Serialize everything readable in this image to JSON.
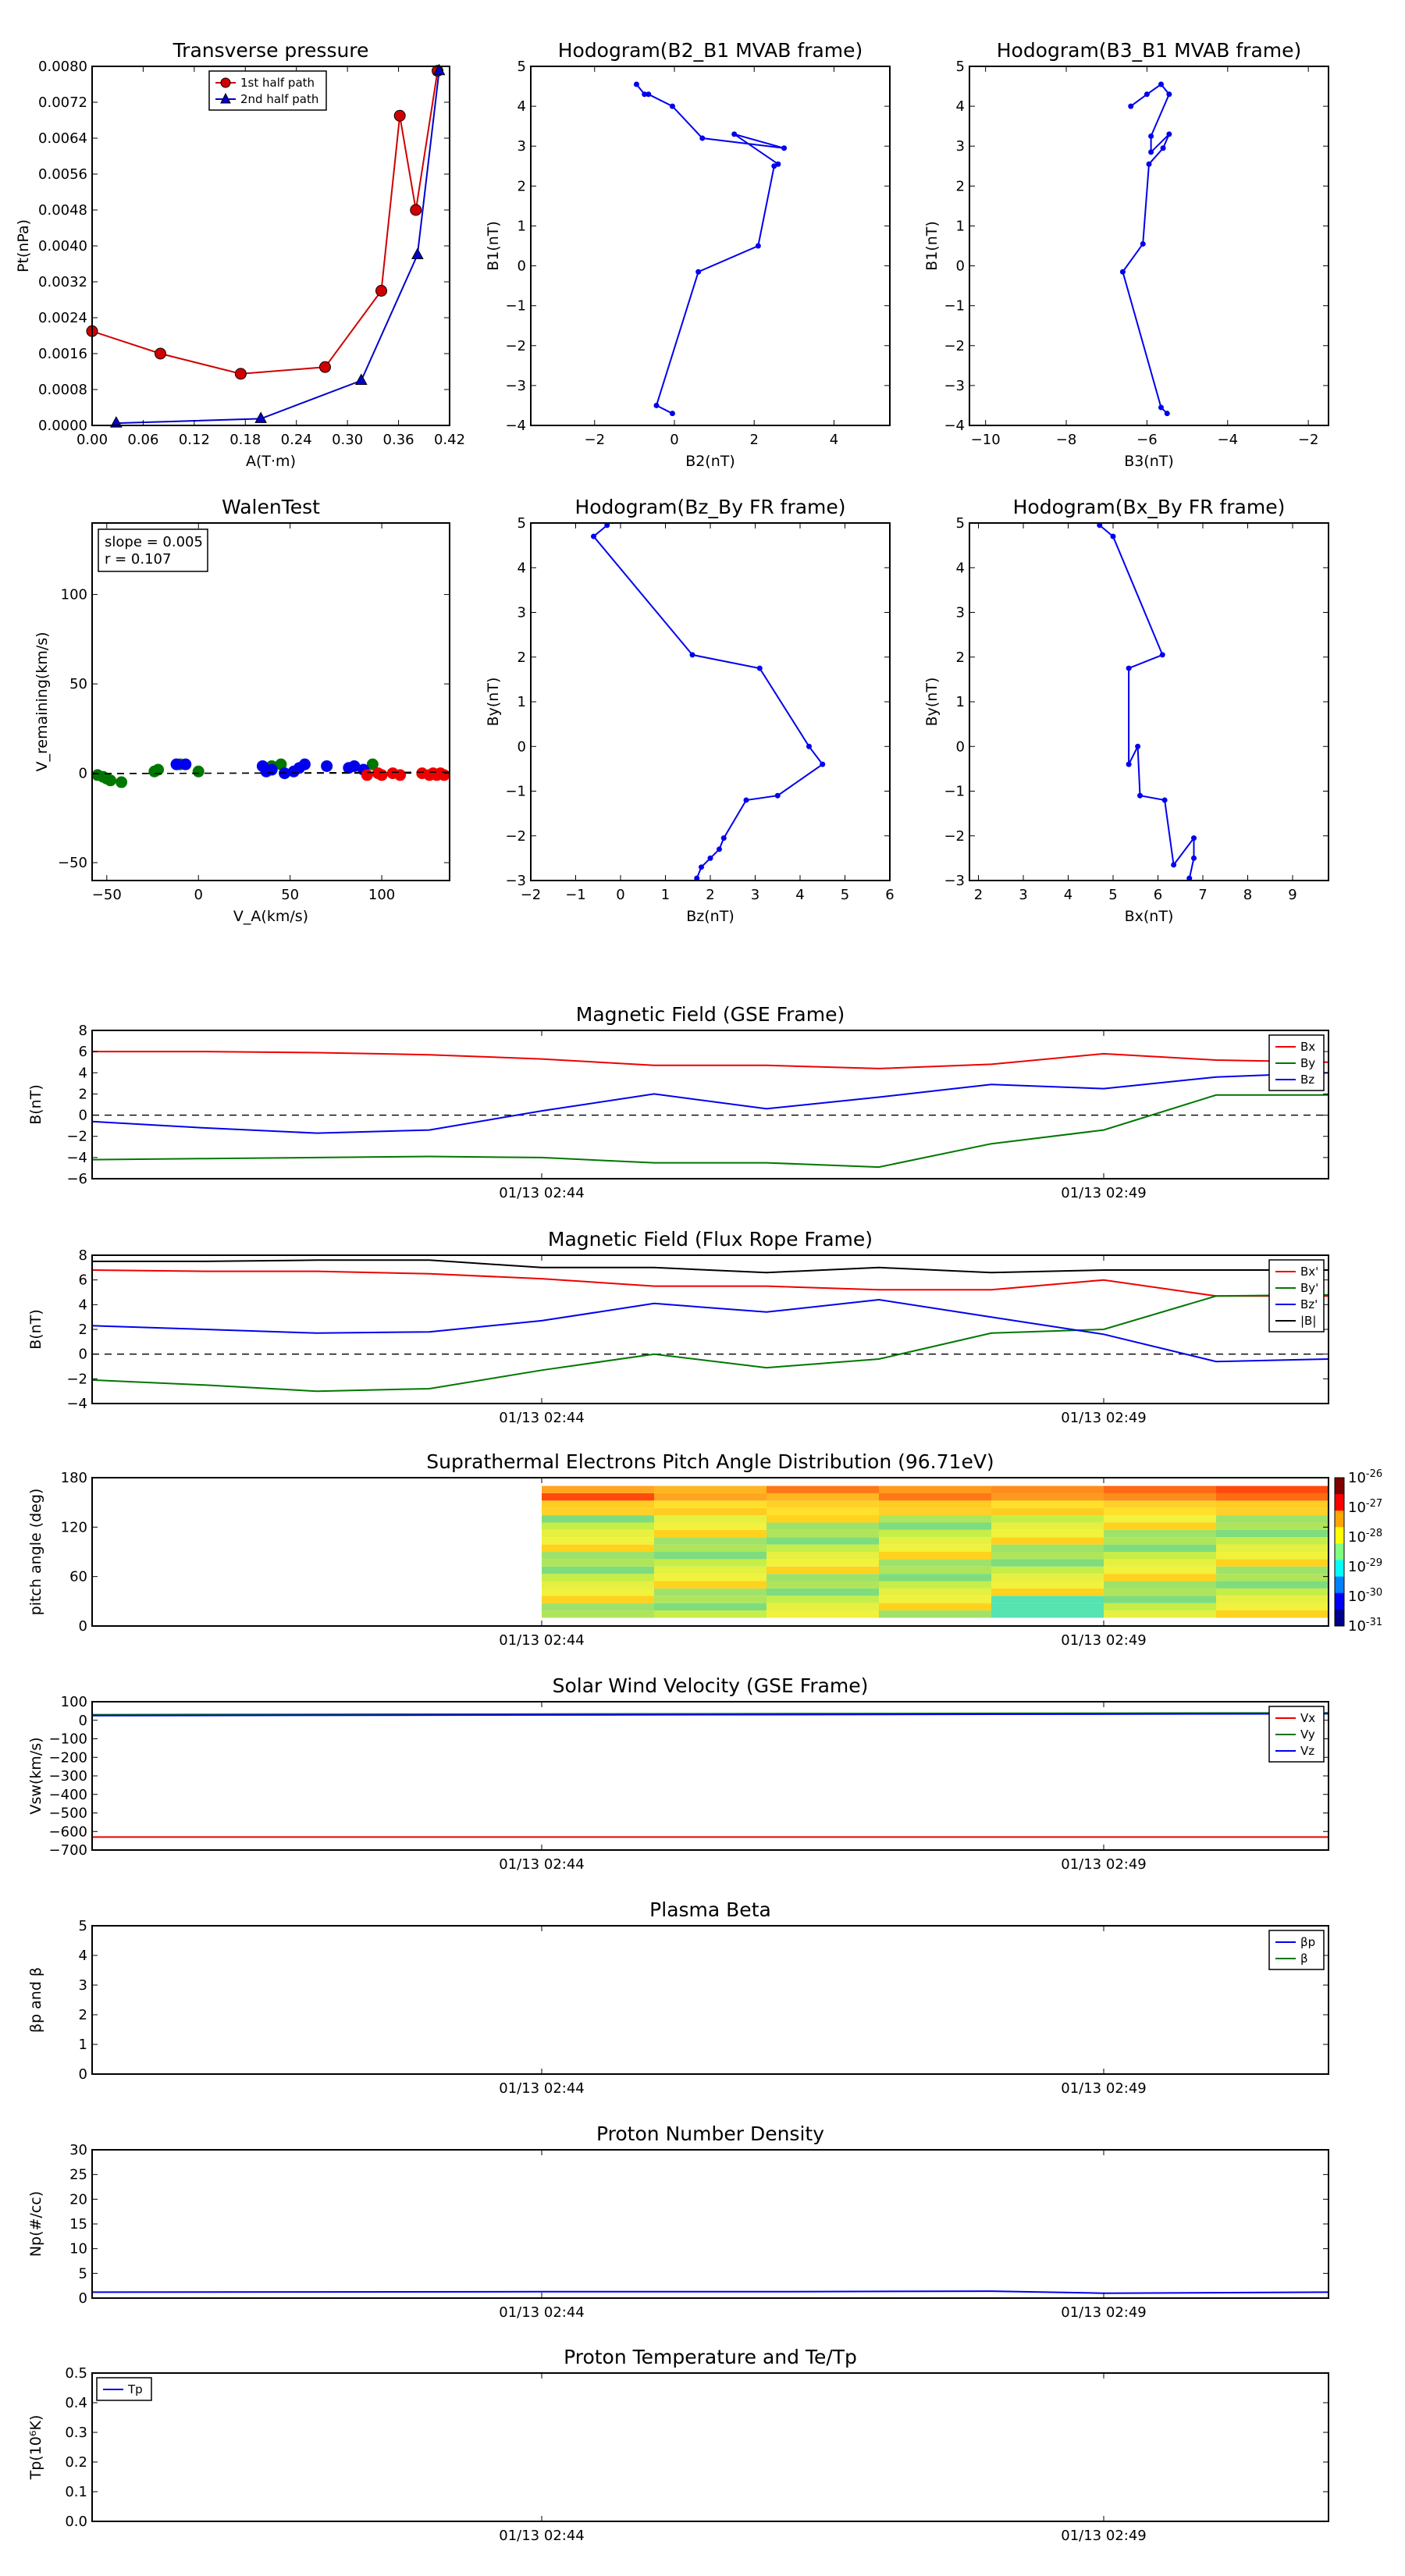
{
  "chart_data": [
    {
      "id": "transverse-pressure",
      "type": "line",
      "title": "Transverse pressure",
      "xlabel": "A(T·m)",
      "ylabel": "Pt(nPa)",
      "xlim": [
        0,
        0.445
      ],
      "ylim": [
        0,
        0.008
      ],
      "xticks": [
        "0.00",
        "0.06",
        "0.12",
        "0.18",
        "0.24",
        "0.30",
        "0.36",
        "0.42"
      ],
      "yticks": [
        "0.0000",
        "0.0008",
        "0.0016",
        "0.0024",
        "0.0032",
        "0.0040",
        "0.0048",
        "0.0056",
        "0.0064",
        "0.0072",
        "0.0080"
      ],
      "legend": "top-left",
      "series": [
        {
          "name": "1st half path",
          "color": "#d00000",
          "marker": "circle",
          "x": [
            0.0,
            0.085,
            0.185,
            0.29,
            0.36,
            0.383,
            0.403,
            0.43
          ],
          "y": [
            0.0021,
            0.0016,
            0.00115,
            0.0013,
            0.003,
            0.0069,
            0.0048,
            0.0079
          ]
        },
        {
          "name": "2nd half path",
          "color": "#0000cc",
          "marker": "triangle",
          "x": [
            0.03,
            0.21,
            0.335,
            0.405,
            0.432
          ],
          "y": [
            5e-05,
            0.00015,
            0.001,
            0.0038,
            0.0079
          ]
        }
      ]
    },
    {
      "id": "hodogram-b2-b1",
      "type": "line",
      "title": "Hodogram(B2_B1 MVAB frame)",
      "xlabel": "B2(nT)",
      "ylabel": "B1(nT)",
      "xlim": [
        -3.6,
        5.4
      ],
      "ylim": [
        -4,
        5
      ],
      "xticks": [
        "−2",
        "0",
        "2",
        "4"
      ],
      "xtickvals": [
        -2,
        0,
        2,
        4
      ],
      "yticks": [
        "−4",
        "−3",
        "−2",
        "−1",
        "0",
        "1",
        "2",
        "3",
        "4",
        "5"
      ],
      "series": [
        {
          "color": "#0000ee",
          "x": [
            -0.05,
            -0.45,
            0.6,
            2.1,
            2.5,
            2.6,
            1.5,
            2.75,
            0.7,
            -0.05,
            -0.65,
            -0.75,
            -0.95
          ],
          "y": [
            -3.7,
            -3.5,
            -0.15,
            0.5,
            2.5,
            2.55,
            3.3,
            2.95,
            3.2,
            4.0,
            4.3,
            4.3,
            4.55
          ]
        }
      ]
    },
    {
      "id": "hodogram-b3-b1",
      "type": "line",
      "title": "Hodogram(B3_B1 MVAB frame)",
      "xlabel": "B3(nT)",
      "ylabel": "B1(nT)",
      "xlim": [
        -10.4,
        -1.5
      ],
      "ylim": [
        -4,
        5
      ],
      "xticks": [
        "−10",
        "−8",
        "−6",
        "−4",
        "−2"
      ],
      "xtickvals": [
        -10,
        -8,
        -6,
        -4,
        -2
      ],
      "yticks": [
        "−4",
        "−3",
        "−2",
        "−1",
        "0",
        "1",
        "2",
        "3",
        "4",
        "5"
      ],
      "series": [
        {
          "color": "#0000ee",
          "x": [
            -5.5,
            -5.65,
            -6.6,
            -6.1,
            -5.95,
            -5.6,
            -5.45,
            -5.9,
            -5.9,
            -5.45,
            -5.65,
            -6.0,
            -6.4
          ],
          "y": [
            -3.7,
            -3.55,
            -0.15,
            0.55,
            2.55,
            2.95,
            3.3,
            2.85,
            3.25,
            4.3,
            4.55,
            4.3,
            4.0
          ]
        }
      ]
    },
    {
      "id": "walen-test",
      "type": "scatter",
      "title": "WalenTest",
      "xlabel": "V_A(km/s)",
      "ylabel": "V_remaining(km/s)",
      "xlim": [
        -58,
        137
      ],
      "ylim": [
        -60,
        140
      ],
      "xticks": [
        "−50",
        "0",
        "50",
        "100"
      ],
      "xtickvals": [
        -50,
        0,
        50,
        100
      ],
      "yticks": [
        "−50",
        "0",
        "50",
        "100"
      ],
      "ytickvals": [
        -50,
        0,
        50,
        100
      ],
      "annotation": [
        "slope = 0.005",
        "r = 0.107"
      ],
      "fit": {
        "slope": 0.005
      },
      "series": [
        {
          "color": "#007700",
          "x": [
            -55,
            -52,
            -50,
            -48,
            -42,
            -24,
            -22,
            -10,
            0,
            40,
            45,
            95
          ],
          "y": [
            -1,
            -2,
            -3,
            -4,
            -5,
            1,
            2,
            5,
            1,
            4,
            5,
            5
          ]
        },
        {
          "color": "#0000ee",
          "x": [
            -12,
            -7,
            35,
            37,
            40,
            47,
            52,
            55,
            58,
            70,
            82,
            85,
            90
          ],
          "y": [
            5,
            5,
            4,
            1,
            2,
            0,
            1,
            3,
            5,
            4,
            3,
            4,
            2
          ]
        },
        {
          "color": "#ee0000",
          "x": [
            92,
            98,
            100,
            106,
            110,
            122,
            126,
            128,
            130,
            132,
            134
          ],
          "y": [
            -1,
            0,
            -1,
            0,
            -1,
            0,
            -1,
            0,
            -1,
            0,
            -1
          ]
        }
      ]
    },
    {
      "id": "hodogram-bz-by",
      "type": "line",
      "title": "Hodogram(Bz_By FR frame)",
      "xlabel": "Bz(nT)",
      "ylabel": "By(nT)",
      "xlim": [
        -2,
        6
      ],
      "ylim": [
        -3,
        5
      ],
      "xticks": [
        "−2",
        "−1",
        "0",
        "1",
        "2",
        "3",
        "4",
        "5",
        "6"
      ],
      "yticks": [
        "−3",
        "−2",
        "−1",
        "0",
        "1",
        "2",
        "3",
        "4",
        "5"
      ],
      "series": [
        {
          "color": "#0000ee",
          "x": [
            1.7,
            1.8,
            2.0,
            2.2,
            2.3,
            2.8,
            3.5,
            4.5,
            4.2,
            3.1,
            1.6,
            -0.6,
            -0.3
          ],
          "y": [
            -2.95,
            -2.7,
            -2.5,
            -2.3,
            -2.05,
            -1.2,
            -1.1,
            -0.4,
            0,
            1.75,
            2.05,
            4.7,
            4.95
          ]
        }
      ]
    },
    {
      "id": "hodogram-bx-by",
      "type": "line",
      "title": "Hodogram(Bx_By FR frame)",
      "xlabel": "Bx(nT)",
      "ylabel": "By(nT)",
      "xlim": [
        1.8,
        9.8
      ],
      "ylim": [
        -3,
        5
      ],
      "xticks": [
        "2",
        "3",
        "4",
        "5",
        "6",
        "7",
        "8",
        "9"
      ],
      "xtickvals": [
        2,
        3,
        4,
        5,
        6,
        7,
        8,
        9
      ],
      "yticks": [
        "−3",
        "−2",
        "−1",
        "0",
        "1",
        "2",
        "3",
        "4",
        "5"
      ],
      "series": [
        {
          "color": "#0000ee",
          "x": [
            6.7,
            6.8,
            6.8,
            6.35,
            6.15,
            5.6,
            5.55,
            5.35,
            5.35,
            6.1,
            5.0,
            4.7
          ],
          "y": [
            -2.95,
            -2.5,
            -2.05,
            -2.65,
            -1.2,
            -1.1,
            0,
            -0.4,
            1.75,
            2.05,
            4.7,
            4.95
          ]
        }
      ]
    },
    {
      "id": "magnetic-field-gse",
      "type": "line",
      "title": "Magnetic Field (GSE Frame)",
      "ylabel": "B(nT)",
      "ylim": [
        -6,
        8
      ],
      "yticks": [
        "−6",
        "−4",
        "−2",
        "0",
        "2",
        "4",
        "6",
        "8"
      ],
      "xlim": [
        0,
        11
      ],
      "xtickvals": [
        4,
        9
      ],
      "xticks": [
        "01/13 02:44",
        "01/13 02:49"
      ],
      "zero_line": true,
      "legend": "top-right",
      "x": [
        0,
        1,
        2,
        3,
        4,
        5,
        6,
        7,
        8,
        9,
        10,
        11
      ],
      "series": [
        {
          "name": "Bx",
          "color": "#ee0000",
          "values": [
            6.0,
            6.0,
            5.9,
            5.7,
            5.3,
            4.7,
            4.7,
            4.4,
            4.8,
            5.8,
            5.2,
            5.0
          ]
        },
        {
          "name": "By",
          "color": "#007700",
          "values": [
            -4.2,
            -4.1,
            -4.0,
            -3.9,
            -4.0,
            -4.5,
            -4.5,
            -4.9,
            -2.7,
            -1.4,
            1.9,
            1.9
          ]
        },
        {
          "name": "Bz",
          "color": "#0000ee",
          "values": [
            -0.6,
            -1.2,
            -1.7,
            -1.4,
            0.4,
            2.0,
            0.6,
            1.7,
            2.9,
            2.5,
            3.6,
            4.0
          ]
        }
      ]
    },
    {
      "id": "magnetic-field-fr",
      "type": "line",
      "title": "Magnetic Field (Flux Rope Frame)",
      "ylabel": "B(nT)",
      "ylim": [
        -4,
        8
      ],
      "yticks": [
        "−4",
        "−2",
        "0",
        "2",
        "4",
        "6",
        "8"
      ],
      "xlim": [
        0,
        11
      ],
      "xtickvals": [
        4,
        9
      ],
      "xticks": [
        "01/13 02:44",
        "01/13 02:49"
      ],
      "zero_line": true,
      "legend": "top-right",
      "x": [
        0,
        1,
        2,
        3,
        4,
        5,
        6,
        7,
        8,
        9,
        10,
        11
      ],
      "series": [
        {
          "name": "Bx'",
          "color": "#ee0000",
          "values": [
            6.8,
            6.7,
            6.7,
            6.5,
            6.1,
            5.5,
            5.5,
            5.2,
            5.2,
            6.0,
            4.7,
            4.7
          ]
        },
        {
          "name": "By'",
          "color": "#007700",
          "values": [
            -2.1,
            -2.5,
            -3.0,
            -2.8,
            -1.3,
            0,
            -1.1,
            -0.4,
            1.7,
            2.0,
            4.7,
            4.8
          ]
        },
        {
          "name": "Bz'",
          "color": "#0000ee",
          "values": [
            2.3,
            2.0,
            1.7,
            1.8,
            2.7,
            4.1,
            3.4,
            4.4,
            3.0,
            1.6,
            -0.6,
            -0.4
          ]
        },
        {
          "name": "|B|",
          "color": "#000000",
          "values": [
            7.5,
            7.5,
            7.6,
            7.6,
            7.0,
            7.0,
            6.6,
            7.0,
            6.6,
            6.8,
            6.8,
            6.8
          ]
        }
      ]
    },
    {
      "id": "pitch-angle",
      "type": "heatmap",
      "title": "Suprathermal Electrons Pitch Angle Distribution (96.71eV)",
      "ylabel": "pitch angle (deg)",
      "ylim": [
        0,
        180
      ],
      "yticks": [
        "0",
        "60",
        "120",
        "180"
      ],
      "ytickvals": [
        0,
        60,
        120,
        180
      ],
      "xlim": [
        0,
        11
      ],
      "xtickvals": [
        4,
        9
      ],
      "xticks": [
        "01/13 02:44",
        "01/13 02:49"
      ],
      "colorbar": {
        "scale": "log",
        "ticks": [
          "10",
          "10",
          "10",
          "10",
          "10",
          "10"
        ],
        "exponents": [
          "-26",
          "-27",
          "-28",
          "-29",
          "-30",
          "-31"
        ]
      },
      "columns": [
        {
          "x0": 4,
          "x1": 5
        },
        {
          "x0": 5,
          "x1": 6
        },
        {
          "x0": 6,
          "x1": 7
        },
        {
          "x0": 7,
          "x1": 8
        },
        {
          "x0": 8,
          "x1": 9
        },
        {
          "x0": 9,
          "x1": 10
        },
        {
          "x0": 10,
          "x1": 11
        }
      ]
    },
    {
      "id": "solar-wind-velocity",
      "type": "line",
      "title": "Solar Wind Velocity (GSE Frame)",
      "ylabel": "Vsw(km/s)",
      "ylim": [
        -700,
        100
      ],
      "yticks": [
        "−700",
        "−600",
        "−500",
        "−400",
        "−300",
        "−200",
        "−100",
        "0",
        "100"
      ],
      "xlim": [
        0,
        11
      ],
      "xtickvals": [
        4,
        9
      ],
      "xticks": [
        "01/13 02:44",
        "01/13 02:49"
      ],
      "legend": "top-right",
      "x": [
        0,
        11
      ],
      "series": [
        {
          "name": "Vx",
          "color": "#ee0000",
          "values": [
            -630,
            -630
          ]
        },
        {
          "name": "Vy",
          "color": "#007700",
          "values": [
            30,
            40
          ]
        },
        {
          "name": "Vz",
          "color": "#0000ee",
          "values": [
            25,
            35
          ]
        }
      ]
    },
    {
      "id": "plasma-beta",
      "type": "line",
      "title": "Plasma Beta",
      "ylabel": "βp and β",
      "ylim": [
        0,
        5
      ],
      "yticks": [
        "0",
        "1",
        "2",
        "3",
        "4",
        "5"
      ],
      "xlim": [
        0,
        11
      ],
      "xtickvals": [
        4,
        9
      ],
      "xticks": [
        "01/13 02:44",
        "01/13 02:49"
      ],
      "legend": "top-right",
      "series": [
        {
          "name": "βp",
          "color": "#0000ee",
          "values": []
        },
        {
          "name": "β",
          "color": "#007700",
          "values": []
        }
      ]
    },
    {
      "id": "proton-density",
      "type": "line",
      "title": "Proton Number Density",
      "ylabel": "Np(#/cc)",
      "ylim": [
        0,
        30
      ],
      "yticks": [
        "0",
        "5",
        "10",
        "15",
        "20",
        "25",
        "30"
      ],
      "xlim": [
        0,
        11
      ],
      "xtickvals": [
        4,
        9
      ],
      "xticks": [
        "01/13 02:44",
        "01/13 02:49"
      ],
      "x": [
        0,
        2,
        4,
        6,
        8,
        9,
        11
      ],
      "series": [
        {
          "color": "#0000ee",
          "values": [
            1.2,
            1.25,
            1.3,
            1.3,
            1.4,
            1.0,
            1.2
          ]
        }
      ]
    },
    {
      "id": "proton-temperature",
      "type": "line",
      "title": "Proton Temperature and Te/Tp",
      "ylabel": "Tp(10⁶K)",
      "ylim": [
        0,
        0.5
      ],
      "yticks": [
        "0.0",
        "0.1",
        "0.2",
        "0.3",
        "0.4",
        "0.5"
      ],
      "xlim": [
        0,
        11
      ],
      "xtickvals": [
        4,
        9
      ],
      "xticks": [
        "01/13 02:44",
        "01/13 02:49"
      ],
      "legend": "top-left",
      "series": [
        {
          "name": "Tp",
          "color": "#0000ee",
          "values": []
        }
      ]
    }
  ]
}
